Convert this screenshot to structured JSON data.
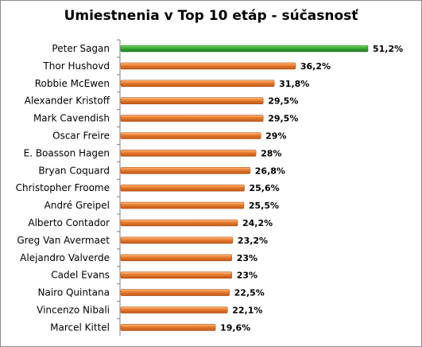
{
  "colors": {
    "highlight_bar": "#3fa93a",
    "highlight_bar_light": "#7fd86a",
    "highlight_bar_dark": "#1f7a1d",
    "bar": "#e8792a",
    "bar_light": "#ffbd82",
    "bar_dark": "#b9581a",
    "axis": "#7f7f7f"
  },
  "chart_data": {
    "type": "bar",
    "orientation": "horizontal",
    "title": "Umiestnenia v Top 10 etáp - súčasnosť",
    "xlabel": "",
    "ylabel": "",
    "xlim": [
      0,
      51.2
    ],
    "grid": false,
    "legend": "none",
    "categories": [
      "Peter Sagan",
      "Thor Hushovd",
      "Robbie McEwen",
      "Alexander Kristoff",
      "Mark Cavendish",
      "Oscar Freire",
      "E. Boasson Hagen",
      "Bryan Coquard",
      "Christopher Froome",
      "André Greipel",
      "Alberto Contador",
      "Greg Van Avermaet",
      "Alejandro Valverde",
      "Cadel Evans",
      "Nairo Quintana",
      "Vincenzo Nibali",
      "Marcel Kittel"
    ],
    "values": [
      51.2,
      36.2,
      31.8,
      29.5,
      29.5,
      29,
      28,
      26.8,
      25.6,
      25.5,
      24.2,
      23.2,
      23,
      23,
      22.5,
      22.1,
      19.6
    ],
    "value_labels": [
      "51,2%",
      "36,2%",
      "31,8%",
      "29,5%",
      "29,5%",
      "29%",
      "28%",
      "26,8%",
      "25,6%",
      "25,5%",
      "24,2%",
      "23,2%",
      "23%",
      "23%",
      "22,5%",
      "22,1%",
      "19,6%"
    ],
    "highlight_index": 0
  }
}
